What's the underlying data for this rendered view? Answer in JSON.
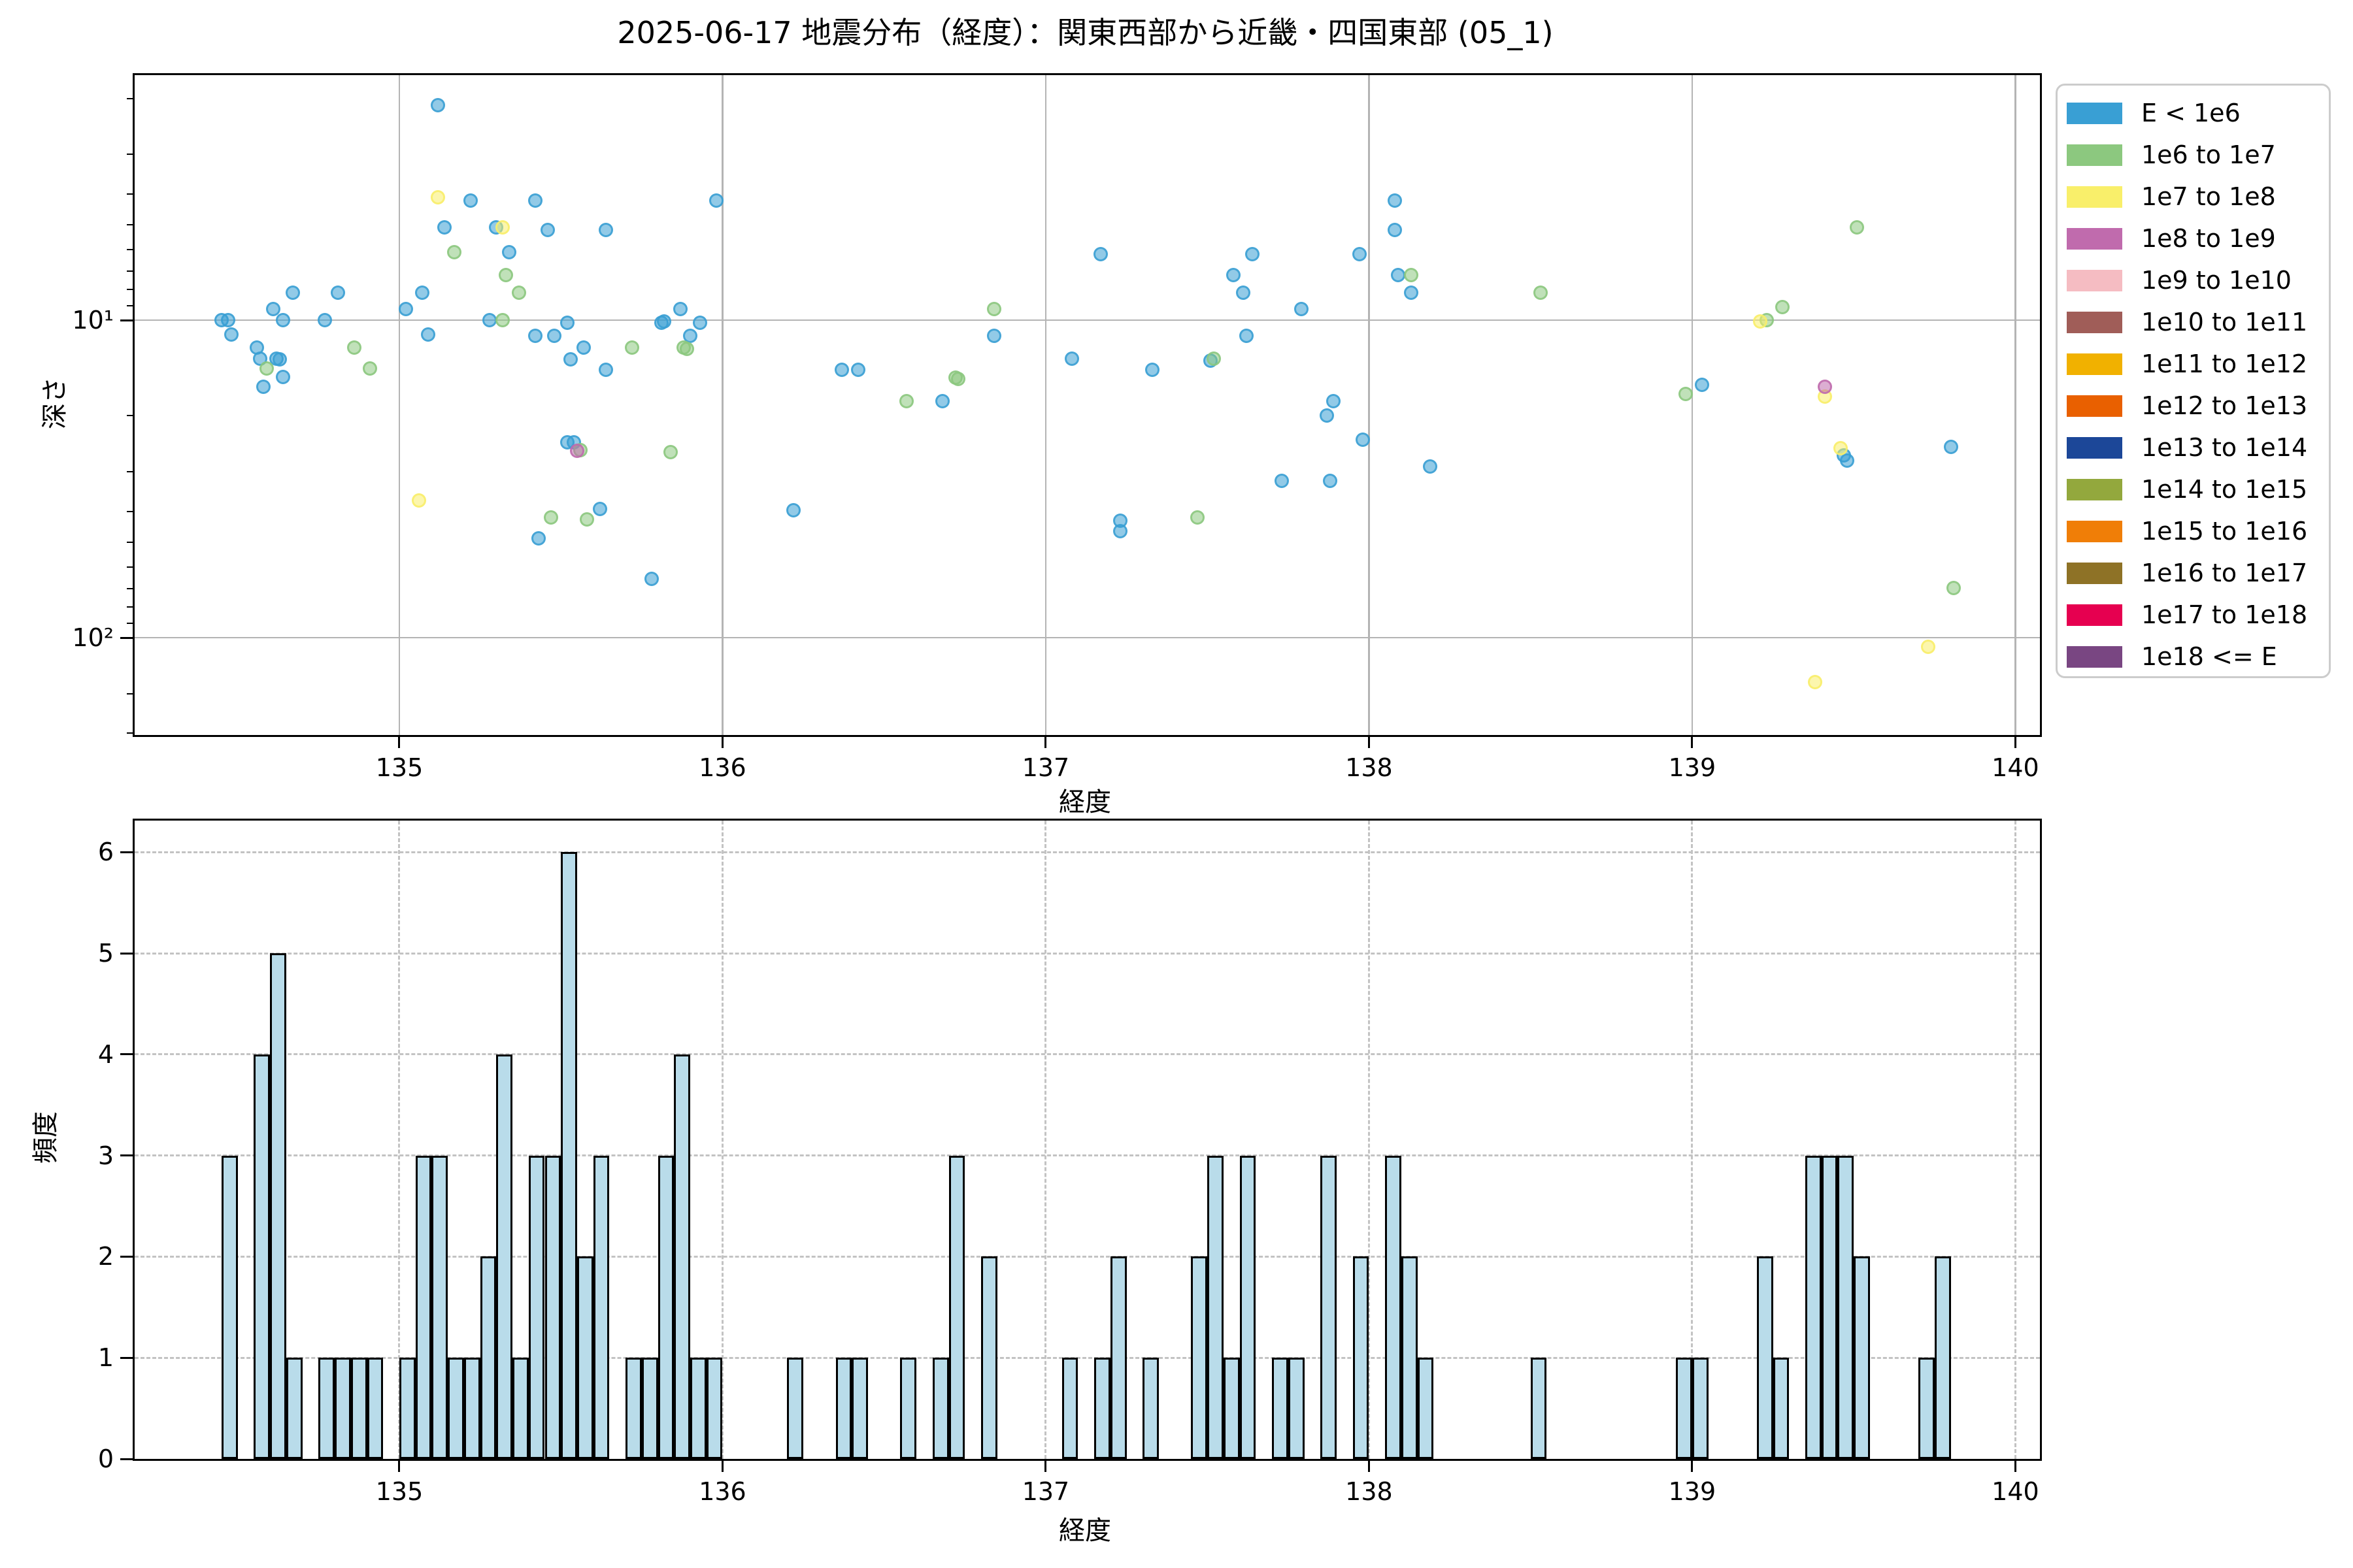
{
  "figure": {
    "title": "2025-06-17 地震分布（経度）：関東西部から近畿・四国東部 (05_1)",
    "background": "#ffffff"
  },
  "scatter": {
    "xlabel": "経度",
    "ylabel": "深さ",
    "xlim": [
      134.181,
      140.076
    ],
    "depth_lim": [
      1.69,
      202.6
    ],
    "xtick_values": [
      135,
      136,
      137,
      138,
      139,
      140
    ],
    "xtick_labels": [
      "135",
      "136",
      "137",
      "138",
      "139",
      "140"
    ],
    "ytick_values": [
      10,
      100
    ],
    "ytick_labels": [
      "10¹",
      "10²"
    ],
    "grid_color": "#b4b4b4"
  },
  "hist": {
    "xlabel": "経度",
    "ylabel": "頻度",
    "xlim": [
      134.181,
      140.076
    ],
    "ylim": [
      0,
      6.312
    ],
    "xtick_values": [
      135,
      136,
      137,
      138,
      139,
      140
    ],
    "xtick_labels": [
      "135",
      "136",
      "137",
      "138",
      "139",
      "140"
    ],
    "ytick_values": [
      0,
      1,
      2,
      3,
      4,
      5,
      6
    ],
    "ytick_labels": [
      "0",
      "1",
      "2",
      "3",
      "4",
      "5",
      "6"
    ],
    "bar_fill": "#b9dcea",
    "bar_edge": "#000000"
  },
  "legend": {
    "items": [
      {
        "label": "E < 1e6",
        "color": "#399fd4"
      },
      {
        "label": "1e6 to 1e7",
        "color": "#8cc87f"
      },
      {
        "label": "1e7 to 1e8",
        "color": "#f9ef6a"
      },
      {
        "label": "1e8 to 1e9",
        "color": "#c06bad"
      },
      {
        "label": "1e9 to 1e10",
        "color": "#f5bcc2"
      },
      {
        "label": "1e10 to 1e11",
        "color": "#a05d58"
      },
      {
        "label": "1e11 to 1e12",
        "color": "#f1b100"
      },
      {
        "label": "1e12 to 1e13",
        "color": "#e96000"
      },
      {
        "label": "1e13 to 1e14",
        "color": "#1c4798"
      },
      {
        "label": "1e14 to 1e15",
        "color": "#93a83d"
      },
      {
        "label": "1e15 to 1e16",
        "color": "#f07e07"
      },
      {
        "label": "1e16 to 1e17",
        "color": "#8e7226"
      },
      {
        "label": "1e17 to 1e18",
        "color": "#e60050"
      },
      {
        "label": "1e18 <= E",
        "color": "#794682"
      }
    ]
  },
  "chart_data": [
    {
      "type": "scatter",
      "title": "2025-06-17 地震分布（経度）：関東西部から近畿・四国東部 (05_1)",
      "xlabel": "経度",
      "ylabel": "深さ",
      "x_axis": "longitude",
      "y_axis": "depth_km_log_inverted",
      "xlim": [
        134.181,
        140.076
      ],
      "ylim": [
        1.69,
        202.6
      ],
      "series": [
        {
          "name": "E < 1e6",
          "color": "#399fd4",
          "points": [
            [
              134.45,
              10.0
            ],
            [
              134.47,
              10.0
            ],
            [
              134.48,
              11.1
            ],
            [
              134.56,
              12.2
            ],
            [
              134.57,
              13.2
            ],
            [
              134.58,
              16.2
            ],
            [
              134.61,
              9.2
            ],
            [
              134.62,
              13.2
            ],
            [
              134.63,
              13.3
            ],
            [
              134.64,
              15.1
            ],
            [
              134.64,
              10.0
            ],
            [
              134.67,
              8.2
            ],
            [
              134.77,
              10.0
            ],
            [
              134.81,
              8.2
            ],
            [
              135.02,
              9.2
            ],
            [
              135.07,
              8.2
            ],
            [
              135.09,
              11.1
            ],
            [
              135.12,
              2.1
            ],
            [
              135.14,
              5.1
            ],
            [
              135.22,
              4.2
            ],
            [
              135.28,
              10.0
            ],
            [
              135.3,
              5.1
            ],
            [
              135.34,
              6.1
            ],
            [
              135.42,
              4.2
            ],
            [
              135.42,
              11.2
            ],
            [
              135.43,
              48.6
            ],
            [
              135.46,
              5.2
            ],
            [
              135.48,
              11.2
            ],
            [
              135.52,
              24.3
            ],
            [
              135.54,
              24.3
            ],
            [
              135.52,
              10.2
            ],
            [
              135.53,
              13.3
            ],
            [
              135.57,
              12.2
            ],
            [
              135.62,
              39.3
            ],
            [
              135.64,
              5.2
            ],
            [
              135.64,
              14.3
            ],
            [
              135.78,
              65.2
            ],
            [
              135.81,
              10.2
            ],
            [
              135.82,
              10.1
            ],
            [
              135.87,
              9.2
            ],
            [
              135.9,
              11.2
            ],
            [
              135.93,
              10.2
            ],
            [
              135.98,
              4.2
            ],
            [
              136.22,
              39.6
            ],
            [
              136.37,
              14.3
            ],
            [
              136.42,
              14.3
            ],
            [
              136.68,
              18.0
            ],
            [
              136.84,
              11.2
            ],
            [
              137.08,
              13.2
            ],
            [
              137.17,
              6.2
            ],
            [
              137.23,
              42.9
            ],
            [
              137.23,
              46.2
            ],
            [
              137.33,
              14.3
            ],
            [
              137.51,
              13.4
            ],
            [
              137.58,
              7.2
            ],
            [
              137.61,
              8.2
            ],
            [
              137.62,
              11.2
            ],
            [
              137.64,
              6.2
            ],
            [
              137.73,
              32.1
            ],
            [
              137.79,
              9.2
            ],
            [
              137.87,
              20.0
            ],
            [
              137.88,
              32.1
            ],
            [
              137.89,
              18.0
            ],
            [
              137.97,
              6.2
            ],
            [
              137.98,
              23.8
            ],
            [
              138.08,
              4.2
            ],
            [
              138.08,
              5.2
            ],
            [
              138.09,
              7.2
            ],
            [
              138.13,
              8.2
            ],
            [
              138.19,
              28.9
            ],
            [
              139.03,
              16.0
            ],
            [
              139.47,
              26.6
            ],
            [
              139.48,
              27.7
            ],
            [
              139.8,
              25.1
            ]
          ]
        },
        {
          "name": "1e6 to 1e7",
          "color": "#8cc87f",
          "points": [
            [
              134.59,
              14.2
            ],
            [
              134.86,
              12.2
            ],
            [
              134.91,
              14.2
            ],
            [
              135.17,
              6.1
            ],
            [
              135.32,
              10.0
            ],
            [
              135.33,
              7.2
            ],
            [
              135.37,
              8.2
            ],
            [
              135.47,
              41.9
            ],
            [
              135.56,
              25.7
            ],
            [
              135.58,
              42.5
            ],
            [
              135.72,
              12.2
            ],
            [
              135.84,
              26.0
            ],
            [
              135.88,
              12.2
            ],
            [
              135.89,
              12.3
            ],
            [
              136.57,
              18.0
            ],
            [
              136.72,
              15.2
            ],
            [
              136.73,
              15.3
            ],
            [
              136.84,
              9.2
            ],
            [
              137.47,
              41.9
            ],
            [
              137.52,
              13.2
            ],
            [
              138.13,
              7.2
            ],
            [
              138.53,
              8.2
            ],
            [
              138.98,
              17.1
            ],
            [
              139.23,
              10.0
            ],
            [
              139.28,
              9.1
            ],
            [
              139.51,
              5.1
            ],
            [
              139.81,
              69.7
            ]
          ]
        },
        {
          "name": "1e7 to 1e8",
          "color": "#f9ef6a",
          "points": [
            [
              135.06,
              37.0
            ],
            [
              135.12,
              4.1
            ],
            [
              135.32,
              5.1
            ],
            [
              139.21,
              10.1
            ],
            [
              139.41,
              17.4
            ],
            [
              139.46,
              25.3
            ],
            [
              139.38,
              138.0
            ],
            [
              139.73,
              107.0
            ]
          ]
        },
        {
          "name": "1e8 to 1e9",
          "color": "#c06bad",
          "points": [
            [
              135.55,
              25.8
            ],
            [
              139.41,
              16.2
            ]
          ]
        }
      ]
    },
    {
      "type": "bar",
      "xlabel": "経度",
      "ylabel": "頻度",
      "bin_width": 0.05,
      "xlim": [
        134.181,
        140.076
      ],
      "ylim": [
        0,
        6.312
      ],
      "bars": [
        [
          134.45,
          3
        ],
        [
          134.55,
          4
        ],
        [
          134.6,
          5
        ],
        [
          134.65,
          1
        ],
        [
          134.75,
          1
        ],
        [
          134.8,
          1
        ],
        [
          134.85,
          1
        ],
        [
          134.9,
          1
        ],
        [
          135.0,
          1
        ],
        [
          135.05,
          3
        ],
        [
          135.1,
          3
        ],
        [
          135.15,
          1
        ],
        [
          135.2,
          1
        ],
        [
          135.25,
          2
        ],
        [
          135.3,
          4
        ],
        [
          135.35,
          1
        ],
        [
          135.4,
          3
        ],
        [
          135.45,
          3
        ],
        [
          135.5,
          6
        ],
        [
          135.55,
          2
        ],
        [
          135.6,
          3
        ],
        [
          135.7,
          1
        ],
        [
          135.75,
          1
        ],
        [
          135.8,
          3
        ],
        [
          135.85,
          4
        ],
        [
          135.9,
          1
        ],
        [
          135.95,
          1
        ],
        [
          136.2,
          1
        ],
        [
          136.35,
          1
        ],
        [
          136.4,
          1
        ],
        [
          136.55,
          1
        ],
        [
          136.65,
          1
        ],
        [
          136.7,
          3
        ],
        [
          136.8,
          2
        ],
        [
          137.05,
          1
        ],
        [
          137.15,
          1
        ],
        [
          137.2,
          2
        ],
        [
          137.3,
          1
        ],
        [
          137.45,
          2
        ],
        [
          137.5,
          3
        ],
        [
          137.55,
          1
        ],
        [
          137.6,
          3
        ],
        [
          137.7,
          1
        ],
        [
          137.75,
          1
        ],
        [
          137.85,
          3
        ],
        [
          137.95,
          2
        ],
        [
          138.05,
          3
        ],
        [
          138.1,
          2
        ],
        [
          138.15,
          1
        ],
        [
          138.5,
          1
        ],
        [
          138.95,
          1
        ],
        [
          139.0,
          1
        ],
        [
          139.2,
          2
        ],
        [
          139.25,
          1
        ],
        [
          139.35,
          3
        ],
        [
          139.4,
          3
        ],
        [
          139.45,
          3
        ],
        [
          139.5,
          2
        ],
        [
          139.7,
          1
        ],
        [
          139.75,
          2
        ]
      ]
    }
  ]
}
